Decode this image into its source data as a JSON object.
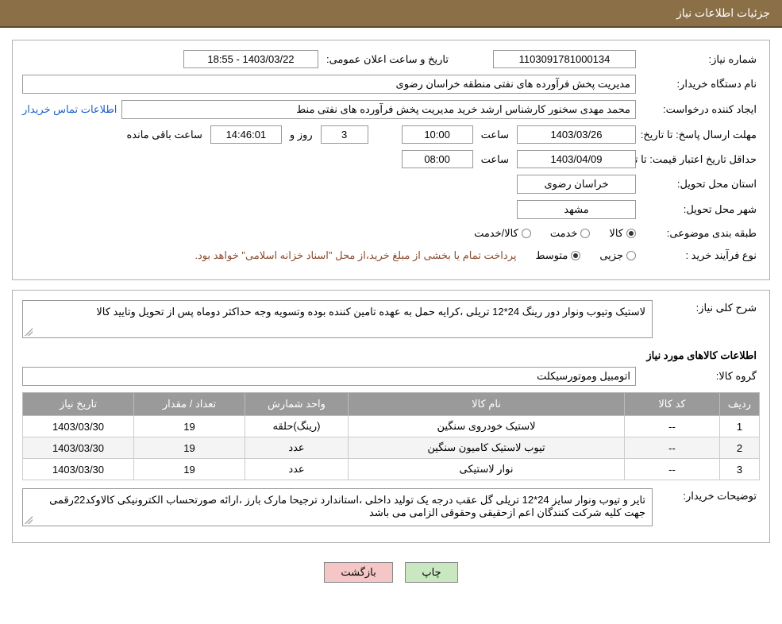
{
  "header": {
    "title": "جزئیات اطلاعات نیاز"
  },
  "fields": {
    "need_number_label": "شماره نیاز:",
    "need_number": "1103091781000134",
    "announce_label": "تاریخ و ساعت اعلان عمومی:",
    "announce_value": "1403/03/22 - 18:55",
    "buyer_org_label": "نام دستگاه خریدار:",
    "buyer_org": "مدیریت پخش فرآورده های نفتی منطقه خراسان رضوی",
    "requester_label": "ایجاد کننده درخواست:",
    "requester": "محمد مهدی سخنور کارشناس ارشد خرید مدیریت پخش فرآورده های نفتی منط",
    "contact_link": "اطلاعات تماس خریدار",
    "reply_deadline_label": "مهلت ارسال پاسخ:",
    "until_label": "تا تاریخ:",
    "reply_date": "1403/03/26",
    "hour_label": "ساعت",
    "reply_time": "10:00",
    "days_value": "3",
    "days_and_label": "روز و",
    "countdown": "14:46:01",
    "remaining_label": "ساعت باقی مانده",
    "validity_label": "حداقل تاریخ اعتبار قیمت:",
    "validity_date": "1403/04/09",
    "validity_time": "08:00",
    "province_label": "استان محل تحویل:",
    "province": "خراسان رضوی",
    "city_label": "شهر محل تحویل:",
    "city": "مشهد",
    "category_label": "طبقه بندی موضوعی:",
    "cat_goods": "کالا",
    "cat_service": "خدمت",
    "cat_goods_service": "کالا/خدمت",
    "process_label": "نوع فرآیند خرید :",
    "process_minor": "جزیی",
    "process_medium": "متوسط",
    "payment_note": "پرداخت تمام یا بخشی از مبلغ خرید،از محل \"اسناد خزانه اسلامی\" خواهد بود."
  },
  "need_desc": {
    "label": "شرح کلی نیاز:",
    "text": "لاستیک وتیوب ونوار دور رینگ 24*12 تریلی ،کرایه حمل به عهده تامین کننده بوده وتسویه وجه حداکثر دوماه پس از تحویل وتایید کالا"
  },
  "items_section": {
    "title": "اطلاعات کالاهای مورد نیاز",
    "group_label": "گروه کالا:",
    "group": "اتومبیل وموتورسیکلت"
  },
  "table": {
    "columns": [
      "ردیف",
      "کد کالا",
      "نام کالا",
      "واحد شمارش",
      "تعداد / مقدار",
      "تاریخ نیاز"
    ],
    "rows": [
      [
        "1",
        "--",
        "لاستیک خودروی سنگین",
        "(رینگ)حلقه",
        "19",
        "1403/03/30"
      ],
      [
        "2",
        "--",
        "تیوب لاستیک کامیون سنگین",
        "عدد",
        "19",
        "1403/03/30"
      ],
      [
        "3",
        "--",
        "نوار لاستیکی",
        "عدد",
        "19",
        "1403/03/30"
      ]
    ],
    "col_widths": [
      "50px",
      "120px",
      "auto",
      "130px",
      "140px",
      "140px"
    ]
  },
  "buyer_notes": {
    "label": "توضیحات خریدار:",
    "text": "تایر و تیوب ونوار سایز 24*12 تریلی گل عقب درجه یک تولید داخلی ،استاندارد ترجیحا مارک بارز ،ارائه صورتحساب الکترونیکی کالاوکد22رقمی جهت کلیه شرکت کنندگان اعم ازحقیقی وحقوقی الزامی می باشد"
  },
  "buttons": {
    "print": "چاپ",
    "back": "بازگشت"
  },
  "colors": {
    "header_bg": "#8b6f47",
    "table_header_bg": "#9a9a9a",
    "print_btn": "#c9e8c1",
    "back_btn": "#f5c6c6",
    "link": "#1a5fc7",
    "note_text": "#8a4a2a"
  }
}
